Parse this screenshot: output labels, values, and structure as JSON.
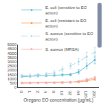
{
  "chart_data": {
    "type": "line",
    "xlabel": "Oregano EO concentration (µg/mL)",
    "categories": [
      "0",
      "1",
      "2",
      "4",
      "8",
      "16",
      "32",
      "64",
      "128",
      "200"
    ],
    "series": [
      {
        "name": "E. coli (sensitive to EO\naction)",
        "color": "#5BB8D4",
        "marker": "circle",
        "line_style": "solid",
        "values": [
          1250,
          1300,
          1350,
          1380,
          1420,
          1450,
          1480,
          1800,
          2500,
          3200
        ],
        "errors": [
          100,
          110,
          120,
          120,
          130,
          140,
          150,
          250,
          350,
          450
        ]
      },
      {
        "name": "E. coli (resistant to EO\naction)",
        "color": "#F79646",
        "marker": "circle",
        "line_style": "solid",
        "values": [
          500,
          520,
          530,
          540,
          550,
          570,
          580,
          620,
          750,
          950
        ],
        "errors": [
          60,
          60,
          65,
          65,
          65,
          70,
          75,
          90,
          110,
          150
        ]
      },
      {
        "name": "S. aureus (sensitive to EO\naction)",
        "color": "#A8D8EA",
        "marker": "circle",
        "line_style": "dashed",
        "values": [
          1350,
          1400,
          1450,
          1520,
          1700,
          2100,
          2500,
          3000,
          3600,
          4100
        ],
        "errors": [
          150,
          160,
          170,
          180,
          220,
          280,
          320,
          380,
          480,
          580
        ]
      },
      {
        "name": "S. aureus (MRSA)",
        "color": "#F4ACAC",
        "marker": "circle",
        "line_style": "solid",
        "values": [
          480,
          490,
          500,
          510,
          520,
          550,
          580,
          700,
          900,
          1100
        ],
        "errors": [
          60,
          60,
          60,
          65,
          65,
          70,
          80,
          100,
          130,
          170
        ]
      }
    ],
    "ylim": [
      0,
      5000
    ],
    "yticks": [
      0,
      500,
      1000,
      1500,
      2000,
      2500,
      3000,
      3500,
      4000,
      4500,
      5000
    ],
    "grid": false,
    "legend": "upper left"
  }
}
